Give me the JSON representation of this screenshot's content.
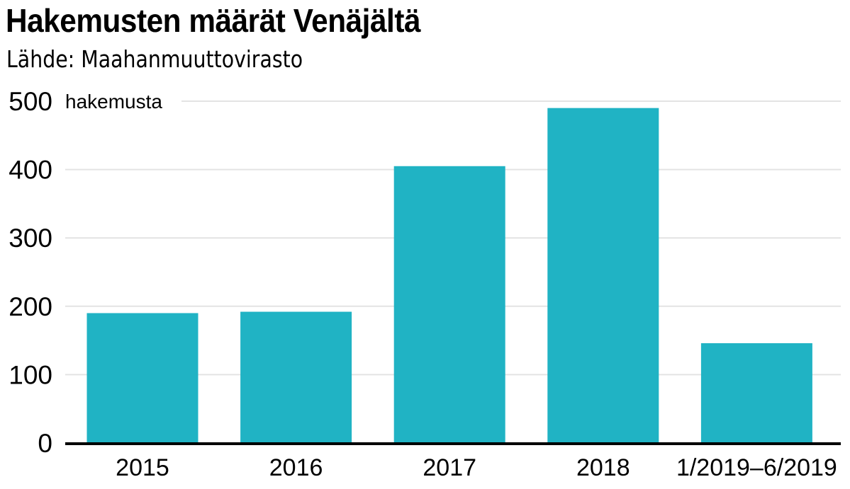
{
  "chart_data": {
    "type": "bar",
    "title": "Hakemusten määrät Venäjältä",
    "subtitle": "Lähde: Maahanmuuttovirasto",
    "ylabel": "hakemusta",
    "xlabel": "",
    "categories": [
      "2015",
      "2016",
      "2017",
      "2018",
      "1/2019–6/2019"
    ],
    "values": [
      190,
      192,
      405,
      490,
      146
    ],
    "ylim": [
      0,
      500
    ],
    "yticks": [
      0,
      100,
      200,
      300,
      400,
      500
    ],
    "grid": true,
    "legend": "none",
    "bar_color": "#20b3c4",
    "grid_color": "#e3e3e3",
    "axis_color": "#000000"
  }
}
